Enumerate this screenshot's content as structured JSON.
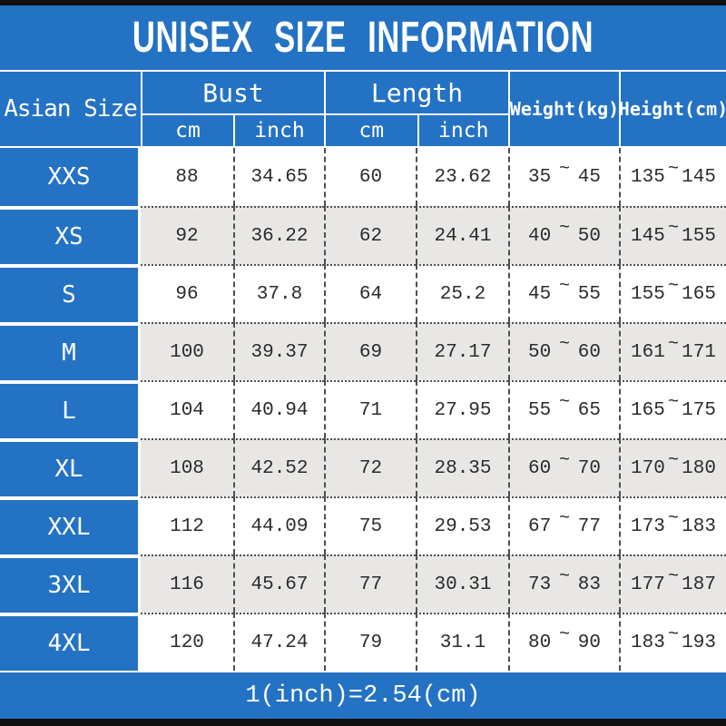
{
  "title": "UNISEX SIZE INFORMATION",
  "footer_note": "1(inch)=2.54(cm)",
  "colors": {
    "primary_blue": "#2472c4",
    "row_alt_gray": "#e8e7e5",
    "frame_black": "#101010",
    "text_dark": "#2b2b2b",
    "header_text": "#ffffff"
  },
  "table": {
    "size_header": "Asian Size",
    "groups": [
      {
        "label": "Bust",
        "subs": [
          "cm",
          "inch"
        ]
      },
      {
        "label": "Length",
        "subs": [
          "cm",
          "inch"
        ]
      }
    ],
    "weight_header": "Weight(kg)",
    "height_header": "Height(cm)",
    "range_separator": "~",
    "rows": [
      {
        "size": "XXS",
        "bust_cm": "88",
        "bust_inch": "34.65",
        "length_cm": "60",
        "length_inch": "23.62",
        "weight_min": "35",
        "weight_max": "45",
        "height_min": "135",
        "height_max": "145"
      },
      {
        "size": "XS",
        "bust_cm": "92",
        "bust_inch": "36.22",
        "length_cm": "62",
        "length_inch": "24.41",
        "weight_min": "40",
        "weight_max": "50",
        "height_min": "145",
        "height_max": "155"
      },
      {
        "size": "S",
        "bust_cm": "96",
        "bust_inch": "37.8",
        "length_cm": "64",
        "length_inch": "25.2",
        "weight_min": "45",
        "weight_max": "55",
        "height_min": "155",
        "height_max": "165"
      },
      {
        "size": "M",
        "bust_cm": "100",
        "bust_inch": "39.37",
        "length_cm": "69",
        "length_inch": "27.17",
        "weight_min": "50",
        "weight_max": "60",
        "height_min": "161",
        "height_max": "171"
      },
      {
        "size": "L",
        "bust_cm": "104",
        "bust_inch": "40.94",
        "length_cm": "71",
        "length_inch": "27.95",
        "weight_min": "55",
        "weight_max": "65",
        "height_min": "165",
        "height_max": "175"
      },
      {
        "size": "XL",
        "bust_cm": "108",
        "bust_inch": "42.52",
        "length_cm": "72",
        "length_inch": "28.35",
        "weight_min": "60",
        "weight_max": "70",
        "height_min": "170",
        "height_max": "180"
      },
      {
        "size": "XXL",
        "bust_cm": "112",
        "bust_inch": "44.09",
        "length_cm": "75",
        "length_inch": "29.53",
        "weight_min": "67",
        "weight_max": "77",
        "height_min": "173",
        "height_max": "183"
      },
      {
        "size": "3XL",
        "bust_cm": "116",
        "bust_inch": "45.67",
        "length_cm": "77",
        "length_inch": "30.31",
        "weight_min": "73",
        "weight_max": "83",
        "height_min": "177",
        "height_max": "187"
      },
      {
        "size": "4XL",
        "bust_cm": "120",
        "bust_inch": "47.24",
        "length_cm": "79",
        "length_inch": "31.1",
        "weight_min": "80",
        "weight_max": "90",
        "height_min": "183",
        "height_max": "193"
      }
    ]
  },
  "chart_data": {
    "type": "table",
    "title": "UNISEX SIZE INFORMATION",
    "columns": [
      "Asian Size",
      "Bust cm",
      "Bust inch",
      "Length cm",
      "Length inch",
      "Weight(kg)",
      "Height(cm)"
    ],
    "rows": [
      [
        "XXS",
        88,
        34.65,
        60,
        23.62,
        "35~45",
        "135~145"
      ],
      [
        "XS",
        92,
        36.22,
        62,
        24.41,
        "40~50",
        "145~155"
      ],
      [
        "S",
        96,
        37.8,
        64,
        25.2,
        "45~55",
        "155~165"
      ],
      [
        "M",
        100,
        39.37,
        69,
        27.17,
        "50~60",
        "161~171"
      ],
      [
        "L",
        104,
        40.94,
        71,
        27.95,
        "55~65",
        "165~175"
      ],
      [
        "XL",
        108,
        42.52,
        72,
        28.35,
        "60~70",
        "170~180"
      ],
      [
        "XXL",
        112,
        44.09,
        75,
        29.53,
        "67~77",
        "173~183"
      ],
      [
        "3XL",
        116,
        45.67,
        77,
        30.31,
        "73~83",
        "177~187"
      ],
      [
        "4XL",
        120,
        47.24,
        79,
        31.1,
        "80~90",
        "183~193"
      ]
    ],
    "note": "1(inch)=2.54(cm)"
  }
}
